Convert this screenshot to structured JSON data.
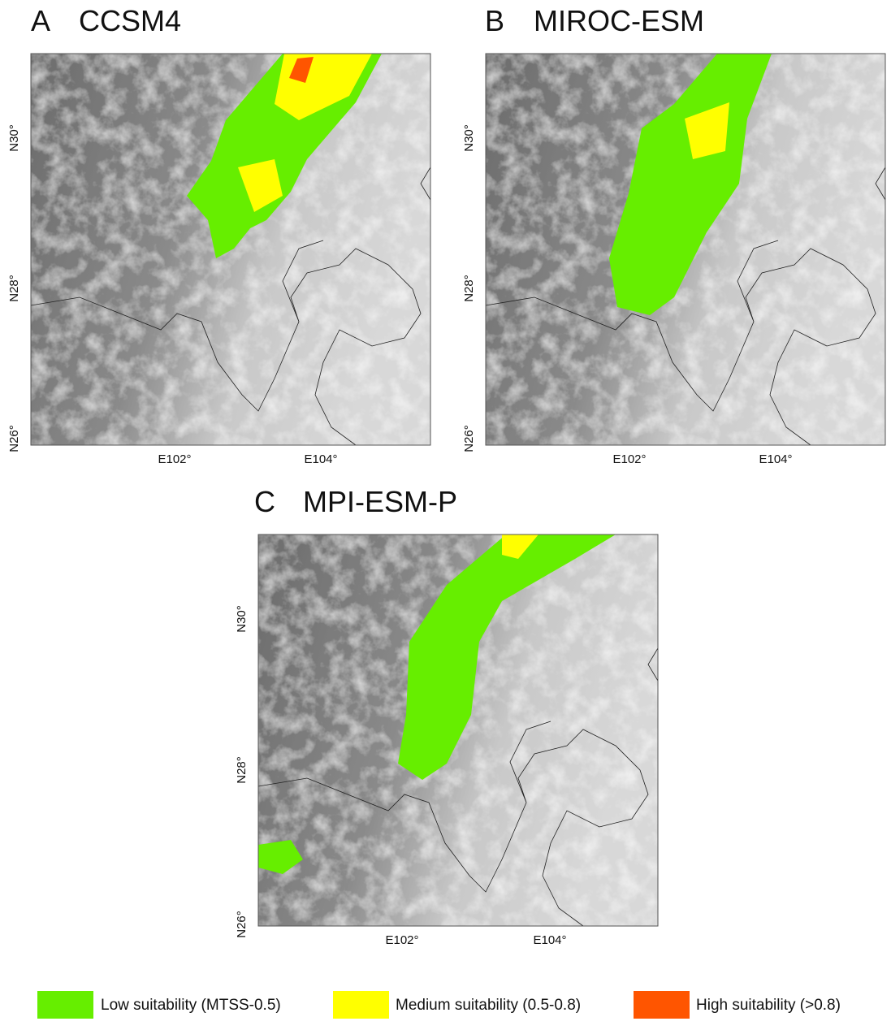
{
  "panels": [
    {
      "letter": "A",
      "title": "CCSM4",
      "x_labels": [
        "E102°",
        "E104°"
      ],
      "y_labels": [
        "N30°",
        "N28°",
        "N26°"
      ]
    },
    {
      "letter": "B",
      "title": "MIROC-ESM",
      "x_labels": [
        "E102°",
        "E104°"
      ],
      "y_labels": [
        "N30°",
        "N28°",
        "N26°"
      ]
    },
    {
      "letter": "C",
      "title": "MPI-ESM-P",
      "x_labels": [
        "E102°",
        "E104°"
      ],
      "y_labels": [
        "N30°",
        "N28°",
        "N26°"
      ]
    }
  ],
  "legend": [
    {
      "label": "Low suitability (MTSS-0.5)",
      "color": "#66ee00"
    },
    {
      "label": "Medium suitability (0.5-0.8)",
      "color": "#ffff00"
    },
    {
      "label": "High suitability (>0.8)",
      "color": "#ff5500"
    }
  ]
}
